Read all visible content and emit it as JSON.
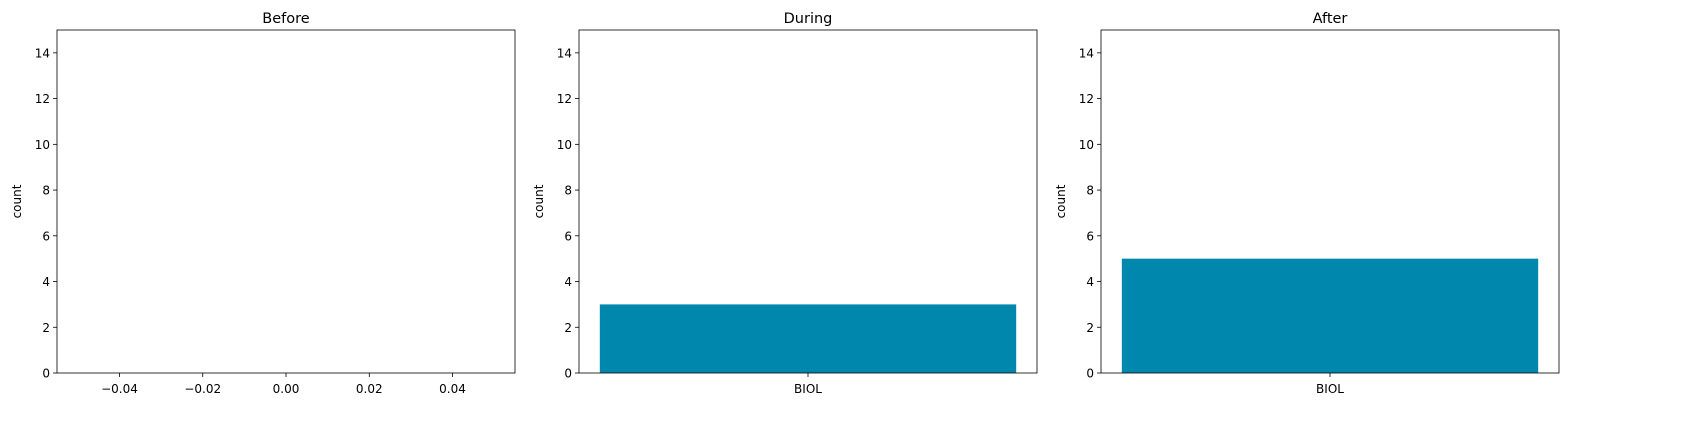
{
  "chart_data": [
    {
      "type": "bar",
      "title": "Before",
      "xlabel": "",
      "ylabel": "count",
      "categories": [],
      "values": [],
      "xlim": [
        -0.055,
        0.055
      ],
      "xticks": [
        "−0.04",
        "−0.02",
        "0.00",
        "0.02",
        "0.04"
      ],
      "xtick_values": [
        -0.04,
        -0.02,
        0.0,
        0.02,
        0.04
      ],
      "ylim": [
        0,
        15
      ],
      "yticks": [
        0,
        2,
        4,
        6,
        8,
        10,
        12,
        14
      ],
      "grid": false,
      "bar_color": "#0087ad"
    },
    {
      "type": "bar",
      "title": "During",
      "xlabel": "",
      "ylabel": "count",
      "categories": [
        "BIOL"
      ],
      "values": [
        3
      ],
      "ylim": [
        0,
        15
      ],
      "yticks": [
        0,
        2,
        4,
        6,
        8,
        10,
        12,
        14
      ],
      "grid": false,
      "bar_color": "#0087ad"
    },
    {
      "type": "bar",
      "title": "After",
      "xlabel": "",
      "ylabel": "count",
      "categories": [
        "BIOL"
      ],
      "values": [
        5
      ],
      "ylim": [
        0,
        15
      ],
      "yticks": [
        0,
        2,
        4,
        6,
        8,
        10,
        12,
        14
      ],
      "grid": false,
      "bar_color": "#0087ad"
    }
  ]
}
